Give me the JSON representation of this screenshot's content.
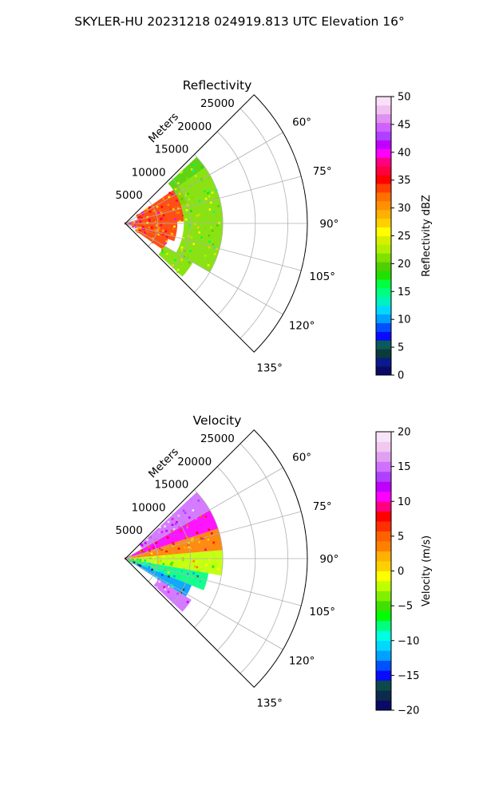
{
  "figure": {
    "title": "SKYLER-HU  20231218  024919.813 UTC Elevation 16°"
  },
  "chart_data": [
    {
      "type": "heatmap",
      "projection": "polar-sector",
      "title": "Reflectivity",
      "radial_axis_label": "Meters",
      "radial_ticks": [
        "5000",
        "10000",
        "15000",
        "20000",
        "25000"
      ],
      "radial_tick_values": [
        5000,
        10000,
        15000,
        20000,
        25000
      ],
      "rlim": [
        0,
        28000
      ],
      "angle_ticks": [
        "60°",
        "75°",
        "90°",
        "105°",
        "120°",
        "135°"
      ],
      "angle_tick_values": [
        60,
        75,
        90,
        105,
        120,
        135
      ],
      "thetalim": [
        45,
        135
      ],
      "grid": true,
      "data_extent_m": 15000,
      "cells": [
        {
          "theta": [
            47,
            55
          ],
          "r": [
            9000,
            15000
          ],
          "value": 20
        },
        {
          "theta": [
            55,
            72
          ],
          "r": [
            2000,
            10000
          ],
          "value": 33
        },
        {
          "theta": [
            72,
            88
          ],
          "r": [
            0,
            9000
          ],
          "value": 33
        },
        {
          "theta": [
            88,
            110
          ],
          "r": [
            0,
            8000
          ],
          "value": 33
        },
        {
          "theta": [
            110,
            125
          ],
          "r": [
            2000,
            7000
          ],
          "value": 33
        },
        {
          "theta": [
            55,
            120
          ],
          "r": [
            9000,
            15000
          ],
          "value": 21
        },
        {
          "theta": [
            120,
            133
          ],
          "r": [
            7000,
            12000
          ],
          "value": 21
        }
      ],
      "colorbar": {
        "label": "Reflectivity dBZ",
        "min": 0,
        "max": 50,
        "ticks": [
          "0",
          "5",
          "10",
          "15",
          "20",
          "25",
          "30",
          "35",
          "40",
          "45",
          "50"
        ],
        "colors": [
          "#0a0a66",
          "#0a1a8a",
          "#0c3a3a",
          "#0a5a5a",
          "#0a0aff",
          "#0050ff",
          "#00a0ff",
          "#00d8ff",
          "#00f0c0",
          "#00ff80",
          "#00ff40",
          "#20e000",
          "#50d000",
          "#80e000",
          "#b0f000",
          "#d8f000",
          "#ffff00",
          "#ffd000",
          "#ffb000",
          "#ff9000",
          "#ff7000",
          "#ff4000",
          "#ff0000",
          "#ff0040",
          "#ff0080",
          "#ff00ff",
          "#c000ff",
          "#b040ff",
          "#d060ff",
          "#e090f0",
          "#f0c0f0",
          "#f8e0f8"
        ]
      }
    },
    {
      "type": "heatmap",
      "projection": "polar-sector",
      "title": "Velocity",
      "radial_axis_label": "Meters",
      "radial_ticks": [
        "5000",
        "10000",
        "15000",
        "20000",
        "25000"
      ],
      "radial_tick_values": [
        5000,
        10000,
        15000,
        20000,
        25000
      ],
      "rlim": [
        0,
        28000
      ],
      "angle_ticks": [
        "60°",
        "75°",
        "90°",
        "105°",
        "120°",
        "135°"
      ],
      "angle_tick_values": [
        60,
        75,
        90,
        105,
        120,
        135
      ],
      "thetalim": [
        45,
        135
      ],
      "grid": true,
      "data_extent_m": 15000,
      "cells": [
        {
          "theta": [
            47,
            60
          ],
          "r": [
            3000,
            15000
          ],
          "value": 15
        },
        {
          "theta": [
            60,
            72
          ],
          "r": [
            0,
            15000
          ],
          "value": 10
        },
        {
          "theta": [
            72,
            85
          ],
          "r": [
            0,
            15000
          ],
          "value": 4
        },
        {
          "theta": [
            85,
            100
          ],
          "r": [
            0,
            15000
          ],
          "value": -2
        },
        {
          "theta": [
            100,
            112
          ],
          "r": [
            0,
            13000
          ],
          "value": -8
        },
        {
          "theta": [
            112,
            122
          ],
          "r": [
            0,
            11000
          ],
          "value": -12
        },
        {
          "theta": [
            122,
            133
          ],
          "r": [
            6000,
            12000
          ],
          "value": 15
        }
      ],
      "colorbar": {
        "label": "Velocity (m/s)",
        "min": -20,
        "max": 20,
        "ticks": [
          "−20",
          "−15",
          "−10",
          "−5",
          "0",
          "5",
          "10",
          "15",
          "20"
        ],
        "colors": [
          "#0a0a66",
          "#0c2a4a",
          "#0a4a4a",
          "#0a0aff",
          "#0050ff",
          "#00a0ff",
          "#00d8ff",
          "#00ffe0",
          "#00ff80",
          "#00ff00",
          "#40e000",
          "#80f000",
          "#c0ff00",
          "#ffff00",
          "#ffd000",
          "#ffb000",
          "#ff8000",
          "#ff6000",
          "#ff3000",
          "#ff0000",
          "#ff0080",
          "#ff00ff",
          "#c000ff",
          "#b040ff",
          "#d070ff",
          "#e0a0f0",
          "#f0c8f0",
          "#f8e4f8"
        ]
      }
    }
  ]
}
